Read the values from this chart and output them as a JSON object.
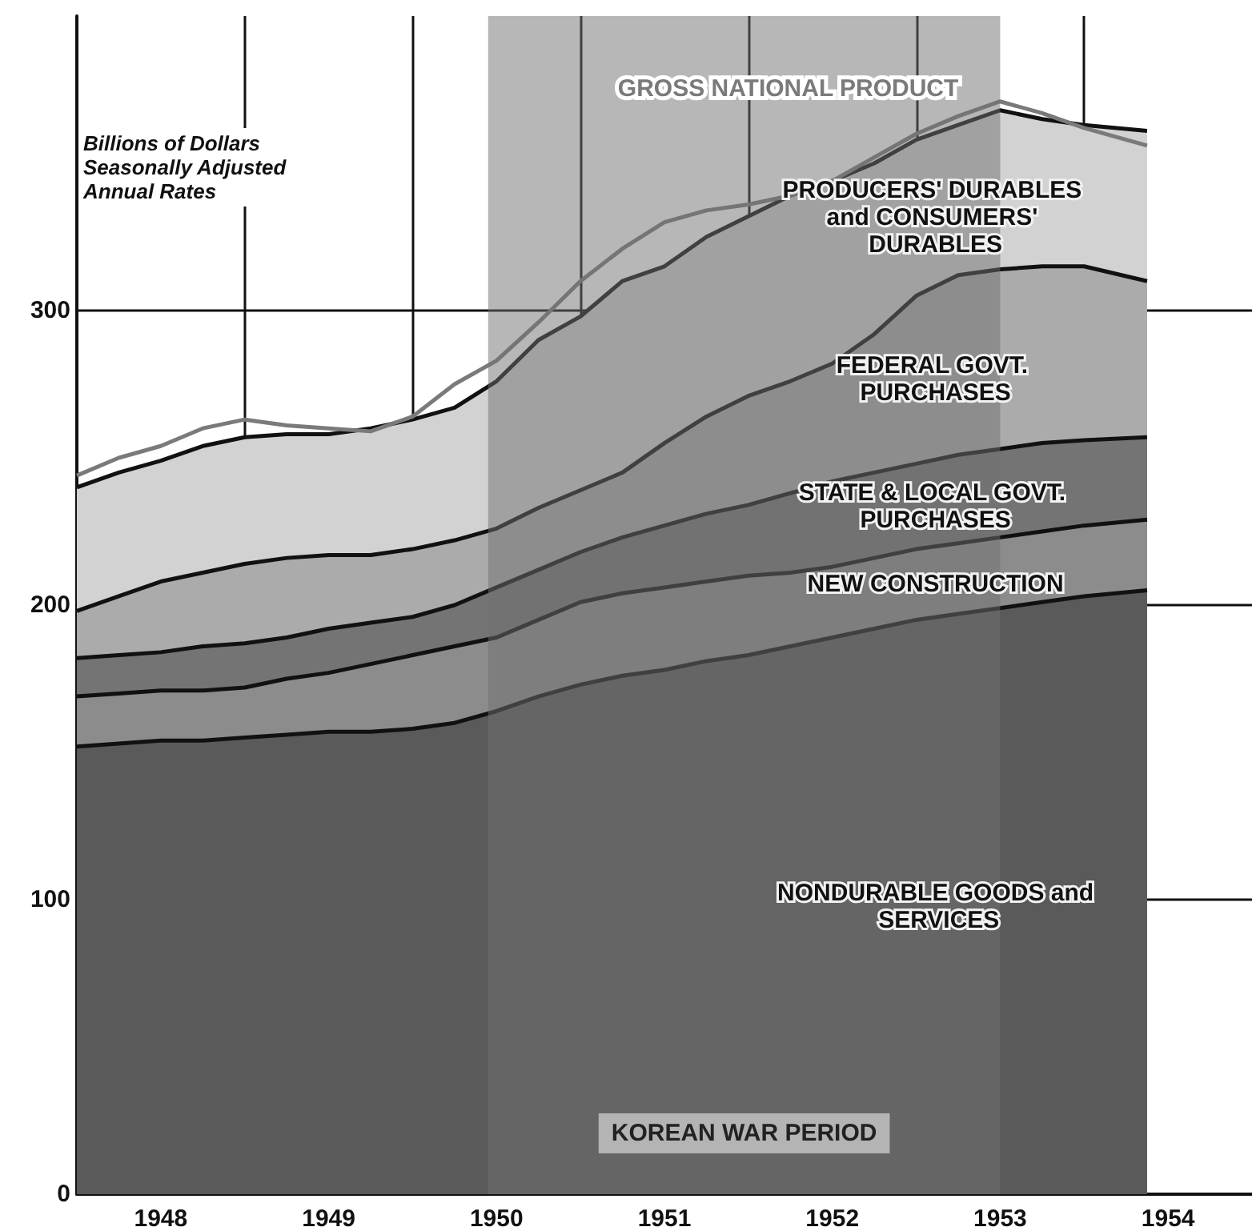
{
  "chart_data": {
    "type": "area",
    "stacked": true,
    "legend": false,
    "grid": true,
    "ylabel": "Billions of Dollars Seasonally Adjusted Annual Rates",
    "x": [
      1948.0,
      1948.25,
      1948.5,
      1948.75,
      1949.0,
      1949.25,
      1949.5,
      1949.75,
      1950.0,
      1950.25,
      1950.5,
      1950.75,
      1951.0,
      1951.25,
      1951.5,
      1951.75,
      1952.0,
      1952.25,
      1952.5,
      1952.75,
      1953.0,
      1953.25,
      1953.5,
      1953.75,
      1954.0,
      1954.375
    ],
    "xlim": [
      1948,
      1955
    ],
    "xticks": [
      {
        "value": 1948,
        "label": null
      },
      {
        "value": 1948.5,
        "label": "1948"
      },
      {
        "value": 1949,
        "label": null
      },
      {
        "value": 1949.5,
        "label": "1949"
      },
      {
        "value": 1950,
        "label": null
      },
      {
        "value": 1950.5,
        "label": "1950"
      },
      {
        "value": 1951,
        "label": null
      },
      {
        "value": 1951.5,
        "label": "1951"
      },
      {
        "value": 1952,
        "label": null
      },
      {
        "value": 1952.5,
        "label": "1952"
      },
      {
        "value": 1953,
        "label": null
      },
      {
        "value": 1953.5,
        "label": "1953"
      },
      {
        "value": 1954,
        "label": null
      },
      {
        "value": 1954.5,
        "label": "1954"
      }
    ],
    "ylim": [
      0,
      400
    ],
    "yticks": [
      0,
      100,
      200,
      300
    ],
    "series": [
      {
        "name": "NONDURABLE GOODS and SERVICES",
        "color": "#5a5a5a",
        "values": [
          152,
          153,
          154,
          154,
          155,
          156,
          157,
          157,
          158,
          160,
          164,
          169,
          173,
          176,
          178,
          181,
          183,
          186,
          189,
          192,
          195,
          197,
          199,
          201,
          203,
          205
        ]
      },
      {
        "name": "NEW CONSTRUCTION",
        "color": "#8c8c8c",
        "values": [
          17,
          17,
          17,
          17,
          17,
          19,
          20,
          23,
          25,
          26,
          25,
          26,
          28,
          28,
          28,
          27,
          27,
          25,
          24,
          24,
          24,
          24,
          24,
          24,
          24,
          24
        ]
      },
      {
        "name": "STATE & LOCAL GOVT. PURCHASES",
        "color": "#747474",
        "values": [
          13,
          13,
          13,
          15,
          15,
          14,
          15,
          14,
          13,
          14,
          17,
          17,
          17,
          19,
          21,
          23,
          24,
          27,
          29,
          29,
          29,
          30,
          30,
          30,
          29,
          28
        ]
      },
      {
        "name": "FEDERAL GOVT. PURCHASES",
        "color": "#ababab",
        "values": [
          16,
          20,
          24,
          25,
          27,
          27,
          25,
          23,
          23,
          22,
          20,
          21,
          21,
          22,
          28,
          33,
          37,
          38,
          40,
          47,
          57,
          61,
          61,
          60,
          59,
          53
        ]
      },
      {
        "name": "PRODUCERS' DURABLES and CONSUMERS' DURABLES",
        "color": "#d2d2d2",
        "values": [
          42,
          42,
          41,
          43,
          43,
          42,
          41,
          43,
          44,
          45,
          50,
          57,
          59,
          65,
          60,
          61,
          61,
          63,
          62,
          58,
          53,
          51,
          54,
          50,
          48,
          51
        ]
      },
      {
        "name": "GROSS NATIONAL PRODUCT",
        "type": "line",
        "color": "#7a7a7a",
        "values": [
          244,
          250,
          254,
          260,
          263,
          261,
          260,
          259,
          264,
          275,
          283,
          296,
          310,
          321,
          330,
          334,
          336,
          339,
          344,
          352,
          360,
          366,
          371,
          367,
          362,
          356
        ]
      }
    ],
    "bands": [
      {
        "axis": "x",
        "from": 1950.45,
        "to": 1953.5,
        "label": "KOREAN WAR PERIOD",
        "color": "#6f6f6f"
      }
    ]
  }
}
